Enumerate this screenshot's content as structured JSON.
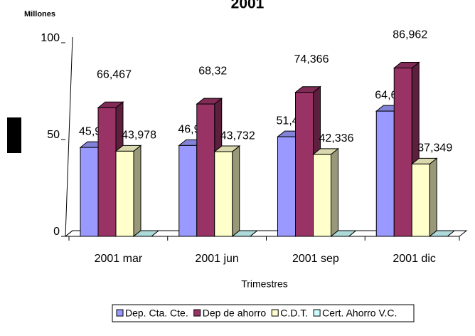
{
  "chart_data": {
    "type": "bar3d",
    "title": "2001",
    "y_label": "Millones",
    "x_label": "Trimestres",
    "categories": [
      "2001 mar",
      "2001 jun",
      "2001 sep",
      "2001 dic"
    ],
    "ylim": [
      0,
      100
    ],
    "yticks": [
      0,
      50,
      100
    ],
    "legend": "bottom",
    "series": [
      {
        "name": "Dep. Cta. Cte.",
        "color": "#9999ff",
        "values": [
          45.921,
          46.911,
          51.445,
          64.666
        ],
        "value_labels": [
          "45,921",
          "46,911",
          "51,445",
          "64,666"
        ]
      },
      {
        "name": "Dep de ahorro",
        "color": "#993366",
        "values": [
          66.467,
          68.32,
          74.366,
          86.962
        ],
        "value_labels": [
          "66,467",
          "68,32",
          "74,366",
          "86,962"
        ]
      },
      {
        "name": "C.D.T.",
        "color": "#ffffcc",
        "values": [
          43.978,
          43.732,
          42.336,
          37.349
        ],
        "value_labels": [
          "43,978",
          "43,732",
          "42,336",
          "37,349"
        ]
      },
      {
        "name": "Cert. Ahorro V.C.",
        "color": "#ccffff",
        "values": [
          0,
          0,
          0,
          0
        ]
      }
    ]
  }
}
